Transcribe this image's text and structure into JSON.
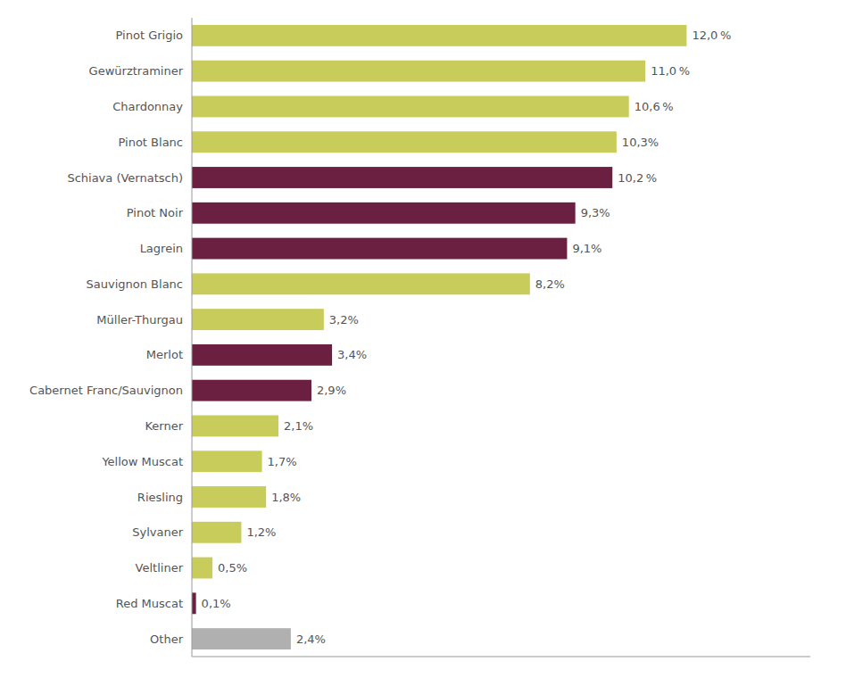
{
  "chart_data": {
    "type": "bar",
    "orientation": "horizontal",
    "categories": [
      "Pinot Grigio",
      "Gewürztraminer",
      "Chardonnay",
      "Pinot Blanc",
      "Schiava (Vernatsch)",
      "Pinot Noir",
      "Lagrein",
      "Sauvignon Blanc",
      "Müller-Thurgau",
      "Merlot",
      "Cabernet Franc/Sauvignon",
      "Kerner",
      "Yellow Muscat",
      "Riesling",
      "Sylvaner",
      "Veltliner",
      "Red Muscat",
      "Other"
    ],
    "values": [
      12.0,
      11.0,
      10.6,
      10.3,
      10.2,
      9.3,
      9.1,
      8.2,
      3.2,
      3.4,
      2.9,
      2.1,
      1.7,
      1.8,
      1.2,
      0.5,
      0.1,
      2.4
    ],
    "value_labels": [
      "12,0 %",
      "11,0 %",
      "10,6 %",
      "10,3%",
      "10,2 %",
      "9,3%",
      "9,1%",
      "8,2%",
      "3,2%",
      "3,4%",
      "2,9%",
      "2,1%",
      "1,7%",
      "1,8%",
      "1,2%",
      "0,5%",
      "0,1%",
      "2,4%"
    ],
    "colors": [
      "#c8cc5a",
      "#c8cc5a",
      "#c8cc5a",
      "#c8cc5a",
      "#6b2042",
      "#6b2042",
      "#6b2042",
      "#c8cc5a",
      "#c8cc5a",
      "#6b2042",
      "#6b2042",
      "#c8cc5a",
      "#c8cc5a",
      "#c8cc5a",
      "#c8cc5a",
      "#c8cc5a",
      "#6b2042",
      "#b0b0b0"
    ],
    "xlim": [
      0,
      15.0
    ],
    "grid": false,
    "data_labels": true,
    "tick_labels": "y"
  }
}
